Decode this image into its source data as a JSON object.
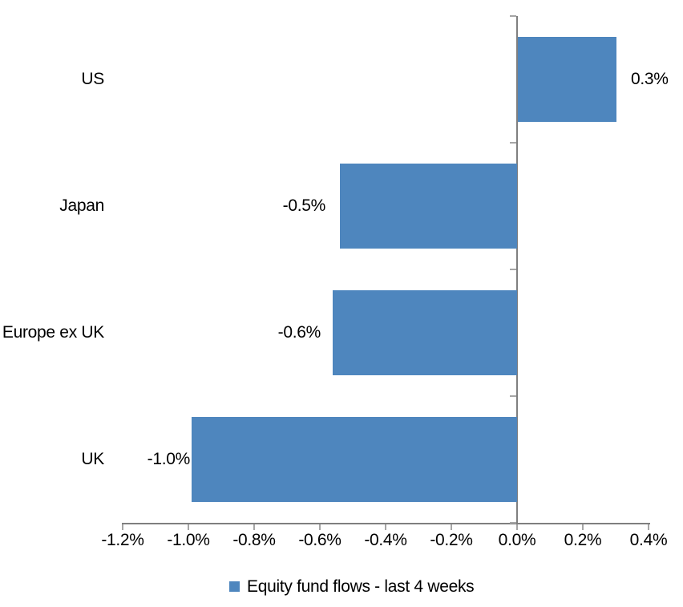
{
  "chart_data": {
    "type": "bar",
    "orientation": "horizontal",
    "title": "",
    "xlabel": "",
    "ylabel": "",
    "categories": [
      "US",
      "Japan",
      "Europe ex UK",
      "UK"
    ],
    "series": [
      {
        "name": "Equity fund flows - last 4 weeks",
        "values": [
          0.3,
          -0.54,
          -0.56,
          -0.99
        ],
        "data_labels": [
          "0.3%",
          "-0.5%",
          "-0.6%",
          "-1.0%"
        ],
        "color": "#4E86BE"
      }
    ],
    "xlim": [
      -1.2,
      0.4
    ],
    "xticks": [
      {
        "value": -1.2,
        "label": "-1.2%"
      },
      {
        "value": -1.0,
        "label": "-1.0%"
      },
      {
        "value": -0.8,
        "label": "-0.8%"
      },
      {
        "value": -0.6,
        "label": "-0.6%"
      },
      {
        "value": -0.4,
        "label": "-0.4%"
      },
      {
        "value": -0.2,
        "label": "-0.2%"
      },
      {
        "value": 0.0,
        "label": "0.0%"
      },
      {
        "value": 0.2,
        "label": "0.2%"
      },
      {
        "value": 0.4,
        "label": "0.4%"
      }
    ],
    "grid": false,
    "legend_position": "bottom",
    "legend_marker": "square-icon",
    "colors": {
      "bar": "#4E86BE",
      "axis_line": "#7F7F7F",
      "tick": "#A6A6A6",
      "text": "#000000",
      "background": "#FFFFFF"
    }
  }
}
